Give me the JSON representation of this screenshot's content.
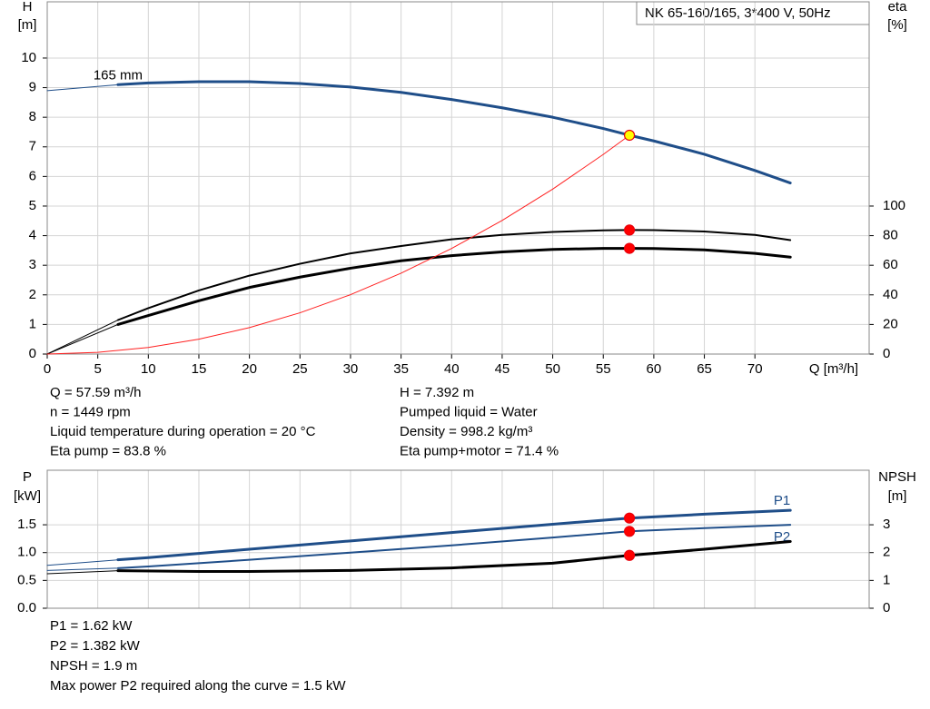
{
  "chart_data": [
    {
      "type": "line",
      "title": "NK 65-160/165, 3*400 V, 50Hz",
      "xlabel": "Q [m³/h]",
      "ylabel": "H",
      "yunit": "[m]",
      "y2label": "eta",
      "y2unit": "[%]",
      "xlim": [
        0,
        81.3
      ],
      "xticks": [
        0,
        5,
        10,
        15,
        20,
        25,
        30,
        35,
        40,
        45,
        50,
        55,
        60,
        65,
        70
      ],
      "xtick_labels": true,
      "ylim": [
        0,
        11.9
      ],
      "yticks": [
        0,
        1,
        2,
        3,
        4,
        5,
        6,
        7,
        8,
        9,
        10
      ],
      "y2lim": [
        0,
        238
      ],
      "y2ticks": [
        0,
        20,
        40,
        60,
        80,
        100
      ],
      "grid": true,
      "series": [
        {
          "color": "#1f4e89",
          "width": 1,
          "x": [
            0,
            7
          ],
          "values": [
            8.9,
            9.1
          ]
        },
        {
          "color": "#1f4e89",
          "width": 3,
          "label": "165 mm",
          "label_position": "above-start",
          "x": [
            7,
            10,
            15,
            20,
            25,
            30,
            35,
            40,
            45,
            50,
            55,
            57.59,
            60,
            65,
            70,
            73.5
          ],
          "values": [
            9.1,
            9.16,
            9.2,
            9.2,
            9.14,
            9.02,
            8.84,
            8.6,
            8.32,
            8.0,
            7.62,
            7.392,
            7.2,
            6.75,
            6.2,
            5.78
          ]
        },
        {
          "color": "#000000",
          "width": 1,
          "axis": "y2",
          "x": [
            0,
            7
          ],
          "values": [
            0,
            23
          ]
        },
        {
          "color": "#000000",
          "width": 2,
          "axis": "y2",
          "x": [
            7,
            10,
            15,
            20,
            25,
            30,
            35,
            40,
            45,
            50,
            55,
            57.59,
            60,
            65,
            70,
            73.5
          ],
          "values": [
            23,
            31,
            43,
            53,
            61,
            68,
            73,
            77.5,
            80.5,
            82.5,
            83.6,
            83.8,
            83.7,
            82.8,
            80.5,
            77
          ]
        },
        {
          "color": "#000000",
          "width": 1,
          "axis": "y2",
          "x": [
            0,
            7
          ],
          "values": [
            0,
            20
          ]
        },
        {
          "color": "#000000",
          "width": 3,
          "axis": "y2",
          "x": [
            7,
            10,
            15,
            20,
            25,
            30,
            35,
            40,
            45,
            50,
            55,
            57.59,
            60,
            65,
            70,
            73.5
          ],
          "values": [
            20,
            26,
            36,
            45,
            52,
            58,
            63,
            66.5,
            69,
            70.7,
            71.4,
            71.4,
            71.3,
            70.4,
            68,
            65.5
          ]
        },
        {
          "color": "#ff2020",
          "width": 1,
          "x": [
            0,
            5,
            10,
            15,
            20,
            25,
            30,
            35,
            40,
            45,
            50,
            55,
            57.59
          ],
          "values": [
            0,
            0.056,
            0.223,
            0.502,
            0.892,
            1.393,
            2.006,
            2.731,
            3.566,
            4.514,
            5.573,
            6.743,
            7.392
          ]
        },
        {
          "color": "#e8000b",
          "marker_fill": "#ffff00",
          "x": [
            57.59
          ],
          "values": [
            7.392
          ]
        },
        {
          "color": "#e8000b",
          "marker_fill": "#ff0000",
          "axis": "y2",
          "x": [
            57.59
          ],
          "values": [
            83.8
          ]
        },
        {
          "color": "#e8000b",
          "marker_fill": "#ff0000",
          "axis": "y2",
          "x": [
            57.59
          ],
          "values": [
            71.4
          ]
        }
      ],
      "info_left": [
        "Q = 57.59 m³/h",
        "n = 1449 rpm",
        "Liquid temperature during operation = 20 °C",
        "Eta pump = 83.8 %"
      ],
      "info_right": [
        "H = 7.392 m",
        "Pumped liquid = Water",
        "Density = 998.2 kg/m³",
        "Eta pump+motor = 71.4 %"
      ]
    },
    {
      "type": "line",
      "ylabel": "P",
      "yunit": "[kW]",
      "y2label": "NPSH",
      "y2unit": "[m]",
      "xlim": [
        0,
        81.3
      ],
      "xticks": [
        0,
        5,
        10,
        15,
        20,
        25,
        30,
        35,
        40,
        45,
        50,
        55,
        60,
        65,
        70
      ],
      "xtick_labels": false,
      "ylim": [
        0,
        2.48
      ],
      "yticks": [
        {
          "value": 0,
          "label": "0.0"
        },
        0.5,
        {
          "value": 1,
          "label": "1.0"
        },
        1.5
      ],
      "y2lim": [
        0,
        4.96
      ],
      "y2ticks": [
        0,
        1,
        2,
        3
      ],
      "grid": true,
      "series": [
        {
          "color": "#1f4e89",
          "width": 1,
          "x": [
            0,
            7
          ],
          "values": [
            0.77,
            0.87
          ]
        },
        {
          "color": "#1f4e89",
          "width": 3,
          "name": "P1",
          "label_position": "above-end",
          "x": [
            7,
            10,
            20,
            30,
            40,
            50,
            57.59,
            65,
            73.5
          ],
          "values": [
            0.87,
            0.91,
            1.06,
            1.21,
            1.36,
            1.51,
            1.62,
            1.69,
            1.76
          ]
        },
        {
          "color": "#1f4e89",
          "width": 1,
          "x": [
            0,
            7
          ],
          "values": [
            0.68,
            0.72
          ]
        },
        {
          "color": "#1f4e89",
          "width": 2,
          "name": "P2",
          "label_position": "below-end",
          "x": [
            7,
            10,
            20,
            30,
            40,
            50,
            57.59,
            65,
            73.5
          ],
          "values": [
            0.72,
            0.75,
            0.87,
            1.0,
            1.13,
            1.27,
            1.382,
            1.44,
            1.5
          ]
        },
        {
          "color": "#000000",
          "width": 1,
          "axis": "y2",
          "x": [
            0,
            7
          ],
          "values": [
            1.24,
            1.35
          ]
        },
        {
          "color": "#000000",
          "width": 3,
          "axis": "y2",
          "x": [
            7,
            15,
            20,
            30,
            40,
            50,
            57.59,
            65,
            73.5
          ],
          "values": [
            1.35,
            1.32,
            1.32,
            1.36,
            1.45,
            1.62,
            1.9,
            2.12,
            2.4
          ]
        },
        {
          "color": "#e8000b",
          "marker_fill": "#ff0000",
          "x": [
            57.59
          ],
          "values": [
            1.62
          ]
        },
        {
          "color": "#e8000b",
          "marker_fill": "#ff0000",
          "x": [
            57.59
          ],
          "values": [
            1.382
          ]
        },
        {
          "color": "#e8000b",
          "marker_fill": "#ff0000",
          "axis": "y2",
          "x": [
            57.59
          ],
          "values": [
            1.9
          ]
        }
      ],
      "info": [
        "P1 = 1.62 kW",
        "P2 = 1.382 kW",
        "NPSH = 1.9 m",
        "Max power P2 required along the curve = 1.5 kW"
      ]
    }
  ]
}
